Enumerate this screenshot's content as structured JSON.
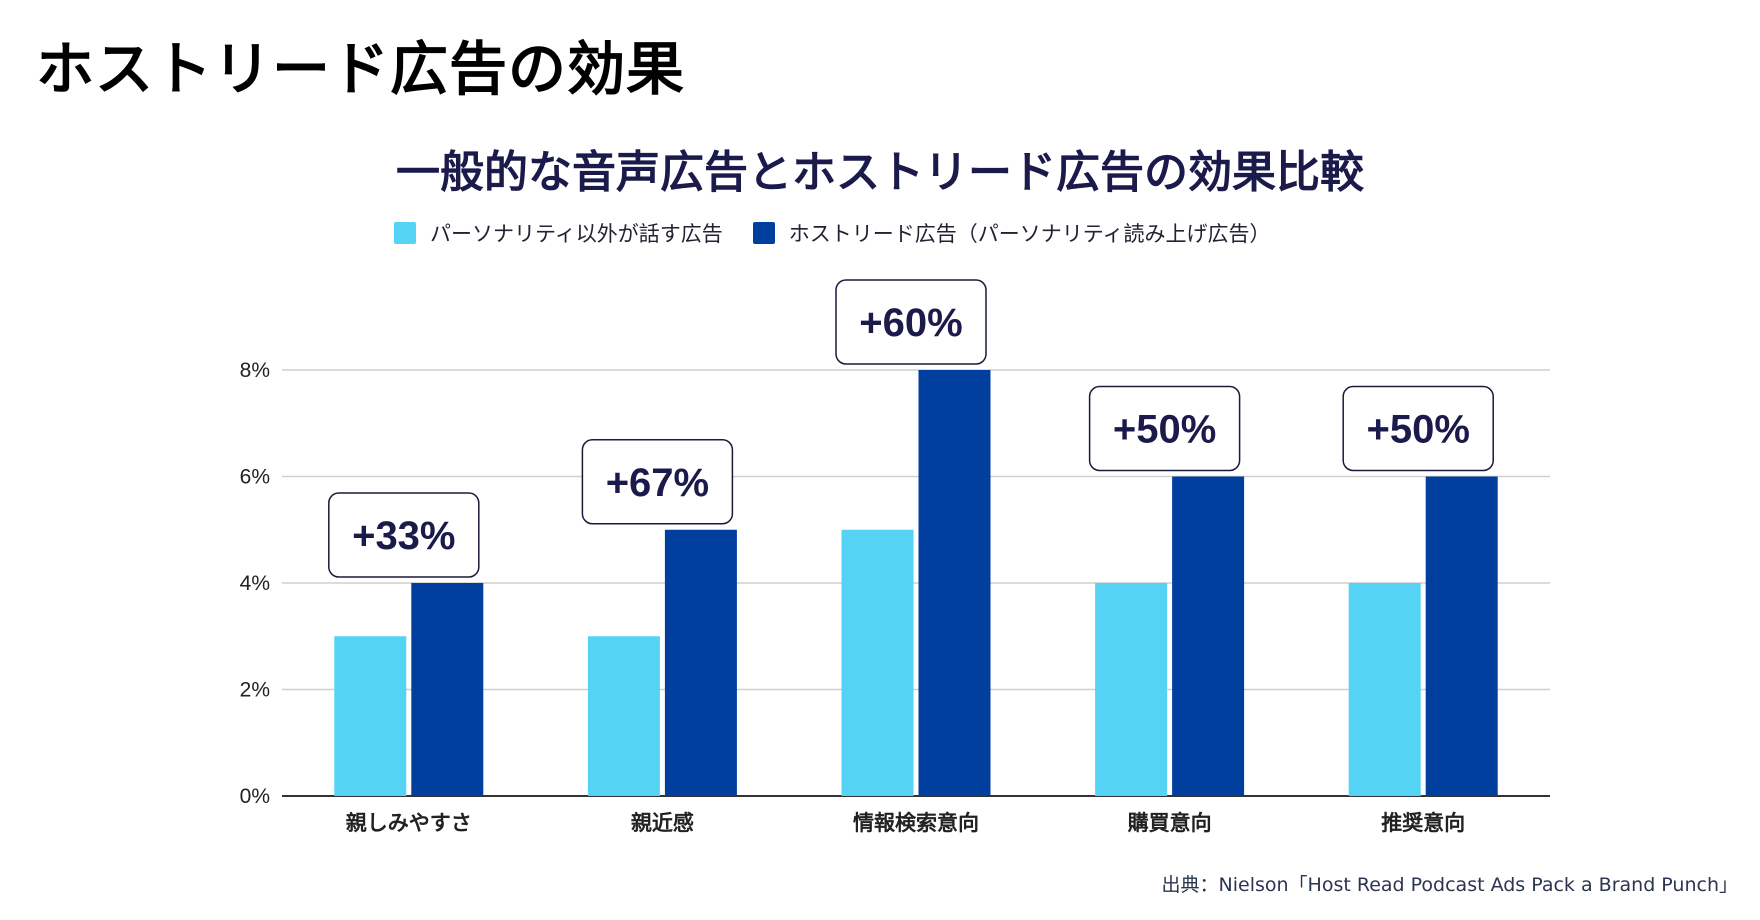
{
  "page": {
    "title": "ホストリード広告の効果",
    "source": "出典：Nielson「Host Read Podcast Ads Pack a Brand Punch」"
  },
  "chart_data": {
    "type": "bar",
    "title": "一般的な音声広告とホストリード広告の効果比較",
    "categories": [
      "親しみやすさ",
      "親近感",
      "情報検索意向",
      "購買意向",
      "推奨意向"
    ],
    "series": [
      {
        "name": "パーソナリティ以外が話す広告",
        "values": [
          3,
          3,
          5,
          4,
          4
        ],
        "color": "#55d3f5"
      },
      {
        "name": "ホストリード広告（パーソナリティ読み上げ広告）",
        "values": [
          4,
          5,
          8,
          6,
          6
        ],
        "color": "#003f9e"
      }
    ],
    "annotations": [
      "+33%",
      "+67%",
      "+60%",
      "+50%",
      "+50%"
    ],
    "ylim": [
      0,
      8
    ],
    "yticks": [
      "0%",
      "2%",
      "4%",
      "6%",
      "8%"
    ],
    "grid": true,
    "legend": "top"
  }
}
